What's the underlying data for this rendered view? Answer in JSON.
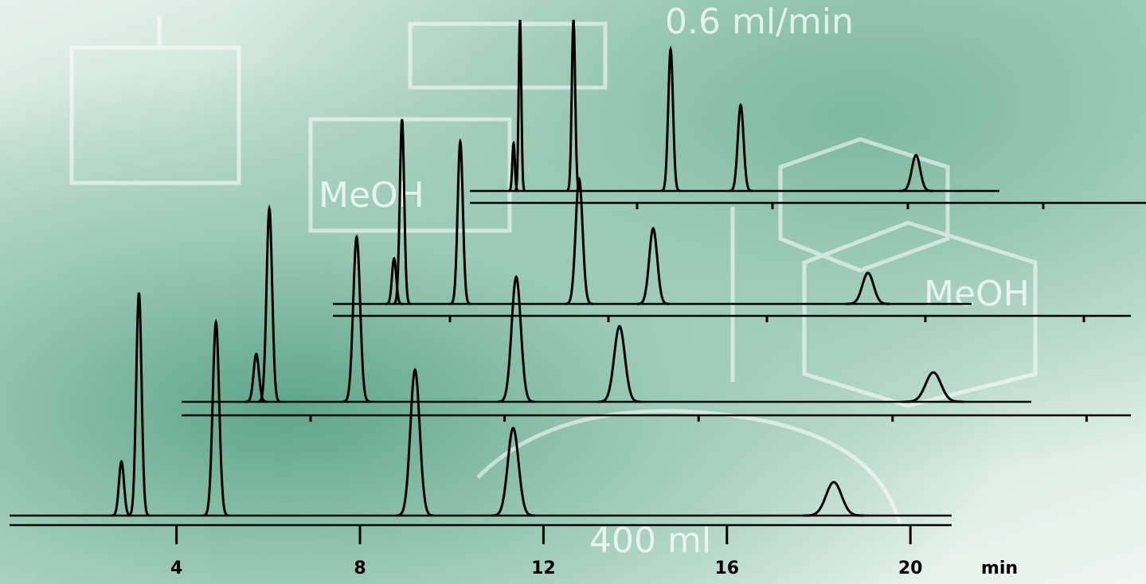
{
  "chart_data": {
    "type": "chromatogram",
    "x_label": "min",
    "color": "#000000",
    "xlim": [
      0.36,
      20.9
    ],
    "xticks": [
      4,
      8,
      12,
      16,
      20
    ],
    "annotations": [
      "0.6 ml/min",
      "MeOH",
      "MeOH",
      "400 ml"
    ],
    "traces": [
      {
        "peaks": [
          2.8,
          3.18,
          4.86,
          9.2,
          11.34,
          18.33
        ],
        "heights": [
          68,
          280,
          243,
          183,
          110,
          42
        ]
      },
      {
        "peaks": [
          2.88,
          3.15,
          4.95,
          8.24,
          10.37,
          16.84
        ],
        "heights": [
          60,
          243,
          207,
          157,
          95,
          37
        ]
      },
      {
        "peaks": [
          2.59,
          2.79,
          4.26,
          7.26,
          9.13,
          14.55
        ],
        "heights": [
          57,
          232,
          204,
          157,
          95,
          39
        ]
      },
      {
        "peaks": [
          0.35,
          0.54,
          2.12,
          4.99,
          7.06,
          12.24
        ],
        "heights": [
          60,
          215,
          215,
          178,
          108,
          45
        ]
      }
    ]
  }
}
